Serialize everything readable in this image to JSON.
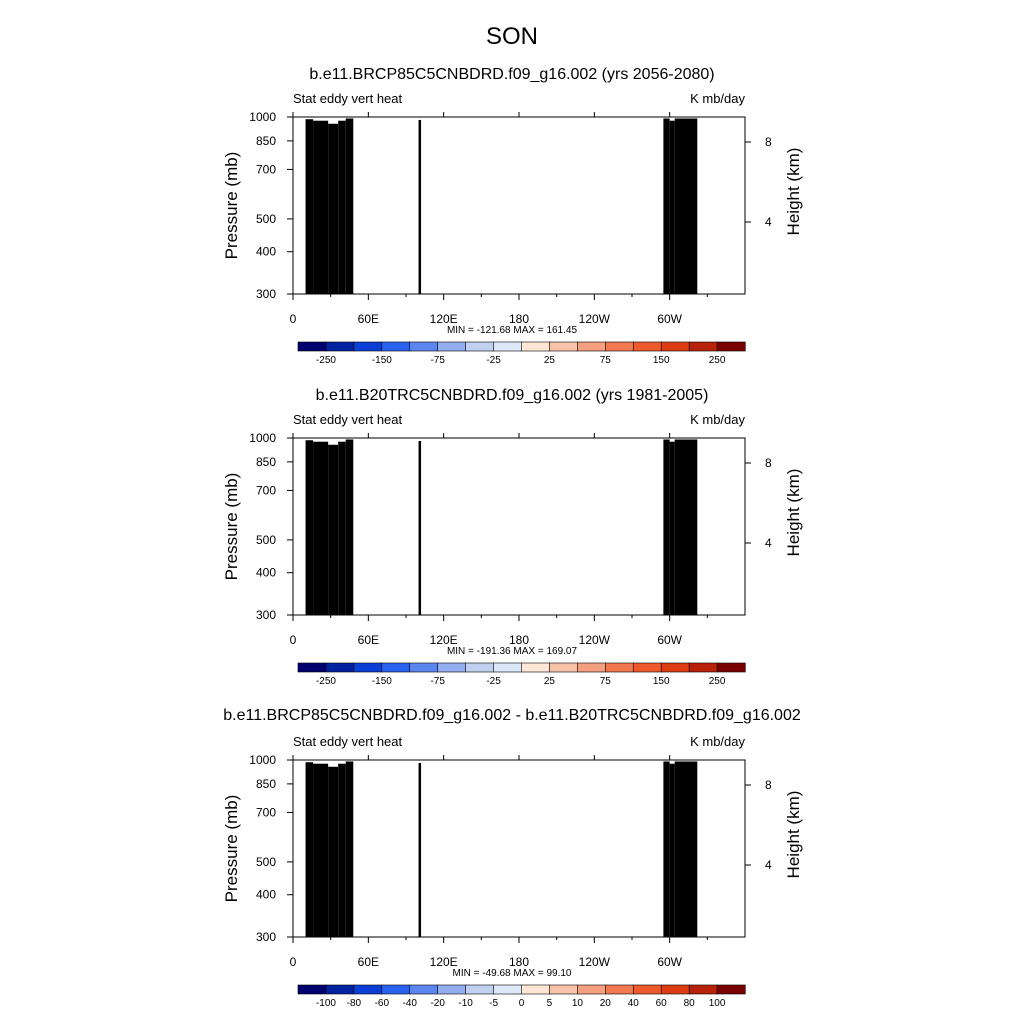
{
  "page": {
    "title": "SON"
  },
  "chart_data": [
    {
      "type": "heatmap",
      "title": "b.e11.BRCP85C5CNBDRD.f09_g16.002 (yrs 2056-2080)",
      "left_label": "Stat eddy vert heat",
      "right_label": "K mb/day",
      "ylabel": "Pressure (mb)",
      "ylabel_right": "Height (km)",
      "xlabel": "",
      "x_ticks": [
        "0",
        "60E",
        "120E",
        "180",
        "120W",
        "60W"
      ],
      "y_ticks": [
        "300",
        "400",
        "500",
        "700",
        "850",
        "1000"
      ],
      "y_ticks_right": [
        "8",
        "4"
      ],
      "y_range_mb": [
        1000,
        300
      ],
      "x_range_deg": [
        0,
        360
      ],
      "stats_text": "MIN = -121.68  MAX = 161.45",
      "colorbar": {
        "labels": [
          "-250",
          "-150",
          "-75",
          "-25",
          "25",
          "75",
          "150",
          "250"
        ],
        "levels": [
          -300,
          -250,
          -200,
          -150,
          -100,
          -75,
          -50,
          -25,
          0,
          25,
          50,
          75,
          100,
          150,
          200,
          250,
          300
        ]
      },
      "colors": [
        "#00006e",
        "#0021a0",
        "#0a3fd6",
        "#2b62f0",
        "#5c86ef",
        "#93aeef",
        "#c0d0f0",
        "#dce8fa",
        "#ffe6d6",
        "#f7c3a8",
        "#f4a080",
        "#f27850",
        "#ef5a2d",
        "#dc3d12",
        "#b8220a",
        "#7a0000"
      ],
      "values_mb": [
        -121.68,
        161.45
      ]
    },
    {
      "type": "heatmap",
      "title": "b.e11.B20TRC5CNBDRD.f09_g16.002 (yrs 1981-2005)",
      "left_label": "Stat eddy vert heat",
      "right_label": "K mb/day",
      "ylabel": "Pressure (mb)",
      "ylabel_right": "Height (km)",
      "xlabel": "",
      "x_ticks": [
        "0",
        "60E",
        "120E",
        "180",
        "120W",
        "60W"
      ],
      "y_ticks": [
        "300",
        "400",
        "500",
        "700",
        "850",
        "1000"
      ],
      "y_ticks_right": [
        "8",
        "4"
      ],
      "y_range_mb": [
        1000,
        300
      ],
      "x_range_deg": [
        0,
        360
      ],
      "stats_text": "MIN = -191.36  MAX = 169.07",
      "colorbar": {
        "labels": [
          "-250",
          "-150",
          "-75",
          "-25",
          "25",
          "75",
          "150",
          "250"
        ],
        "levels": [
          -300,
          -250,
          -200,
          -150,
          -100,
          -75,
          -50,
          -25,
          0,
          25,
          50,
          75,
          100,
          150,
          200,
          250,
          300
        ]
      },
      "colors": [
        "#00006e",
        "#0021a0",
        "#0a3fd6",
        "#2b62f0",
        "#5c86ef",
        "#93aeef",
        "#c0d0f0",
        "#dce8fa",
        "#ffe6d6",
        "#f7c3a8",
        "#f4a080",
        "#f27850",
        "#ef5a2d",
        "#dc3d12",
        "#b8220a",
        "#7a0000"
      ],
      "values_mb": [
        -191.36,
        169.07
      ]
    },
    {
      "type": "heatmap",
      "title": "b.e11.BRCP85C5CNBDRD.f09_g16.002 - b.e11.B20TRC5CNBDRD.f09_g16.002",
      "left_label": "Stat eddy vert heat",
      "right_label": "K mb/day",
      "ylabel": "Pressure (mb)",
      "ylabel_right": "Height (km)",
      "xlabel": "",
      "x_ticks": [
        "0",
        "60E",
        "120E",
        "180",
        "120W",
        "60W"
      ],
      "y_ticks": [
        "300",
        "400",
        "500",
        "700",
        "850",
        "1000"
      ],
      "y_ticks_right": [
        "8",
        "4"
      ],
      "y_range_mb": [
        1000,
        300
      ],
      "x_range_deg": [
        0,
        360
      ],
      "stats_text": "MIN = -49.68  MAX = 99.10",
      "colorbar": {
        "labels": [
          "-100",
          "-80",
          "-60",
          "-40",
          "-20",
          "-10",
          "-5",
          "0",
          "5",
          "10",
          "20",
          "40",
          "60",
          "80",
          "100"
        ],
        "levels": [
          -120,
          -100,
          -80,
          -60,
          -40,
          -20,
          -10,
          -5,
          0,
          5,
          10,
          20,
          40,
          60,
          80,
          100,
          120
        ]
      },
      "colors": [
        "#00006e",
        "#0021a0",
        "#0a3fd6",
        "#2b62f0",
        "#5c86ef",
        "#93aeef",
        "#c0d0f0",
        "#dce8fa",
        "#ffe6d6",
        "#f7c3a8",
        "#f4a080",
        "#f27850",
        "#ef5a2d",
        "#dc3d12",
        "#b8220a",
        "#7a0000"
      ],
      "values_mb": [
        -49.68,
        99.1
      ]
    }
  ]
}
